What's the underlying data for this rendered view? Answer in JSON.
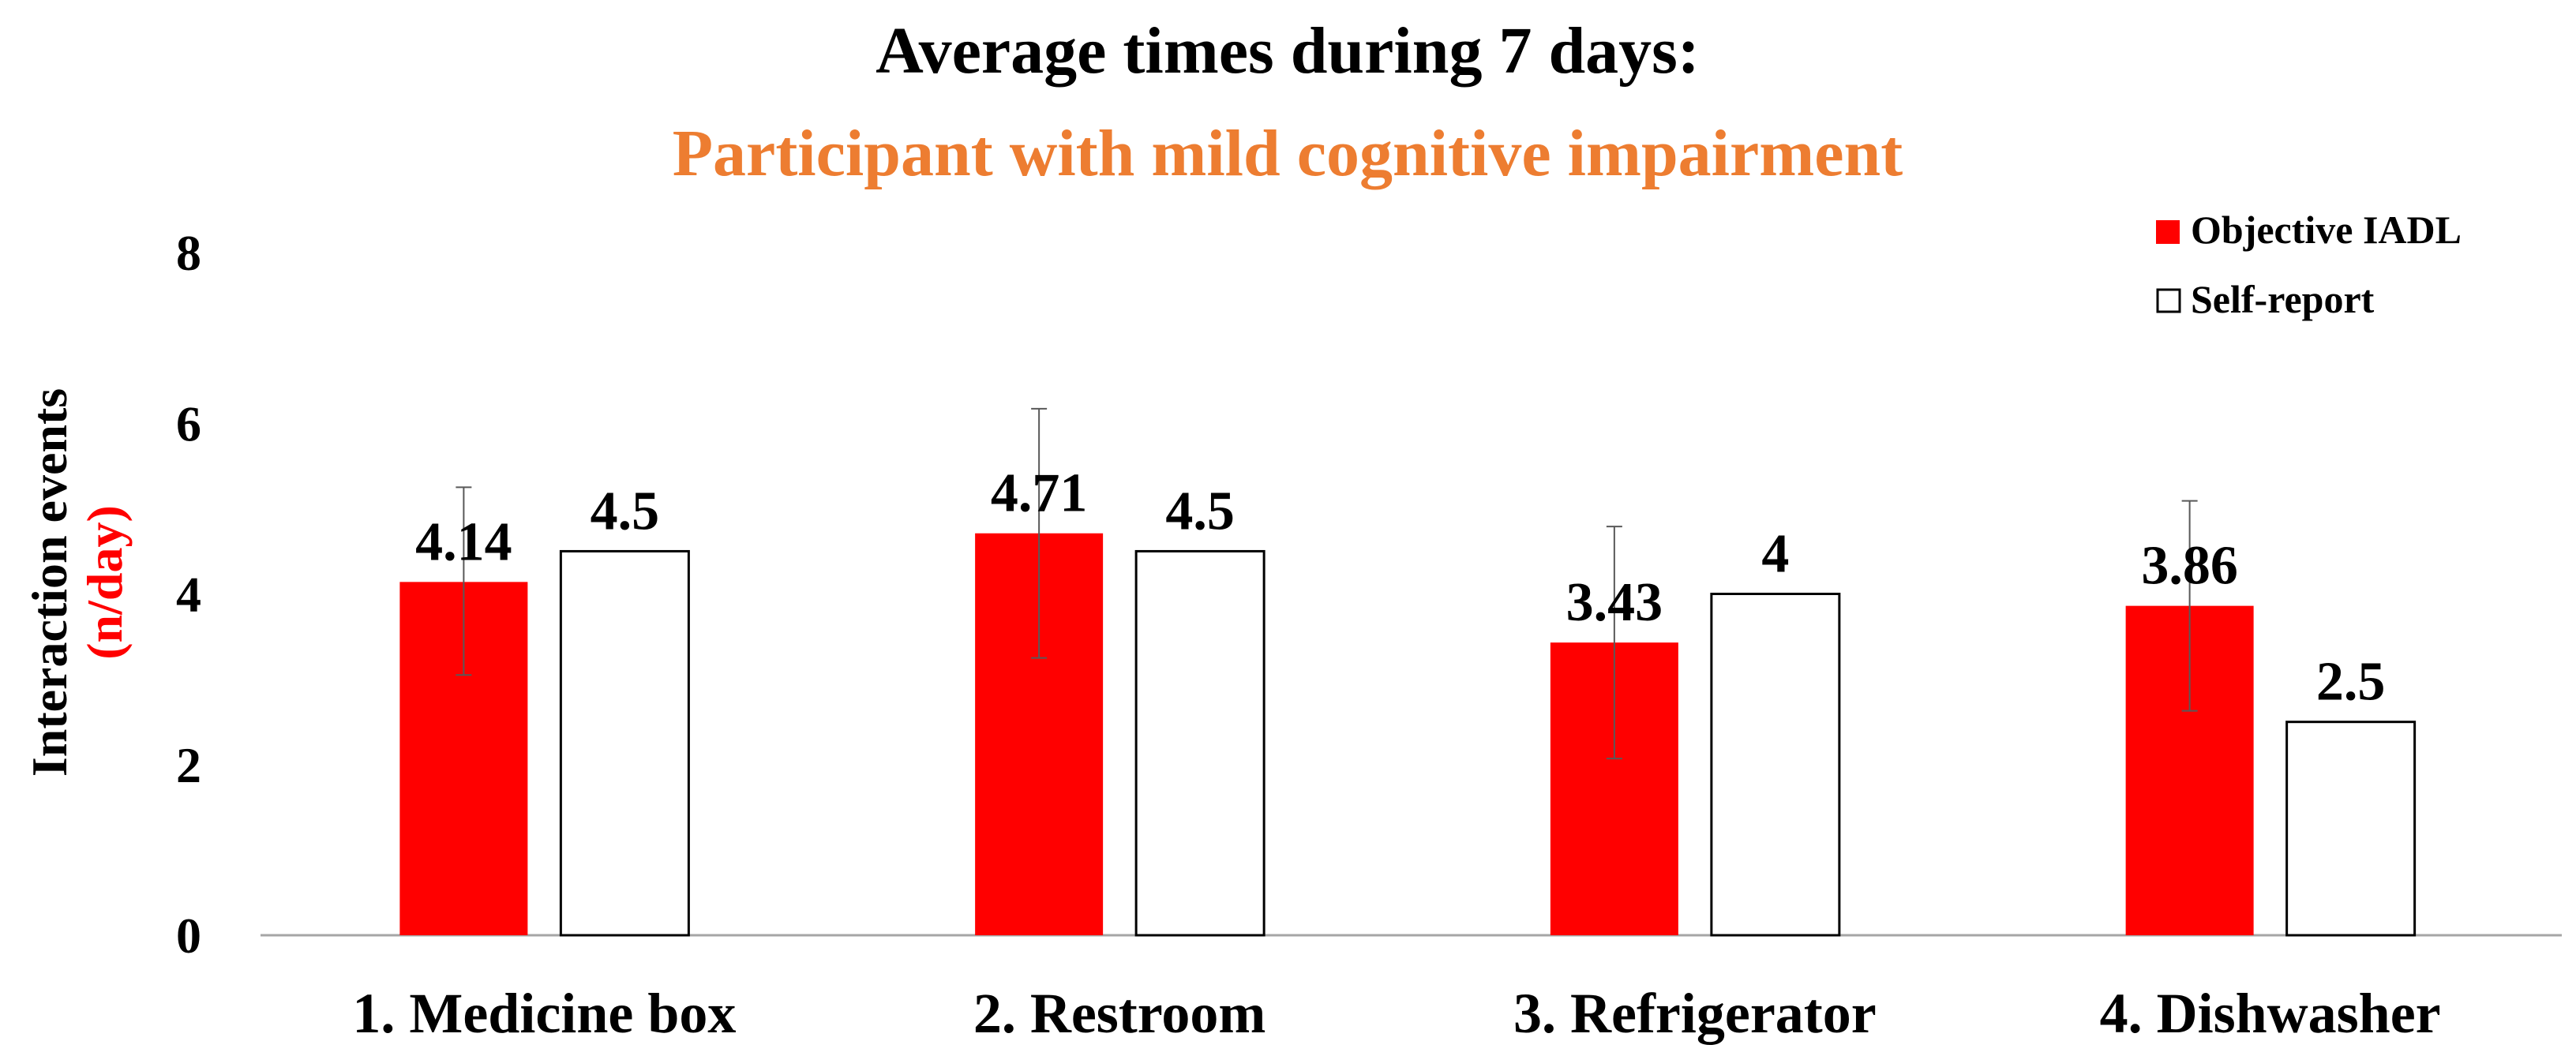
{
  "chart_data": {
    "type": "bar",
    "title": "Average times during 7 days:",
    "subtitle": "Participant with mild cognitive impairment",
    "ylabel": "Interaction events",
    "ylabel_unit": "(n/day)",
    "xlabel": "",
    "ylim": [
      0,
      8
    ],
    "yticks": [
      "0",
      "2",
      "4",
      "6",
      "8"
    ],
    "categories": [
      "1. Medicine box",
      "2. Restroom",
      "3. Refrigerator",
      "4. Dishwasher"
    ],
    "series": [
      {
        "name": "Objective IADL",
        "values": [
          4.14,
          4.71,
          3.43,
          3.86
        ],
        "labels": [
          "4.14",
          "4.71",
          "3.43",
          "3.86"
        ],
        "error": [
          [
            3.05,
            5.25
          ],
          [
            3.25,
            6.17
          ],
          [
            2.07,
            4.79
          ],
          [
            2.63,
            5.09
          ]
        ],
        "color": "#ff0000"
      },
      {
        "name": "Self-report",
        "values": [
          4.5,
          4.5,
          4.0,
          2.5
        ],
        "labels": [
          "4.5",
          "4.5",
          "4",
          "2.5"
        ],
        "color": "#ffffff",
        "stroke": "#000000"
      }
    ],
    "legend": "top-right",
    "grid": false,
    "colors": {
      "title": "#000000",
      "subtitle": "#ed7d31",
      "ylabel_unit": "#ff0000",
      "axis": "#a6a6a6"
    }
  }
}
